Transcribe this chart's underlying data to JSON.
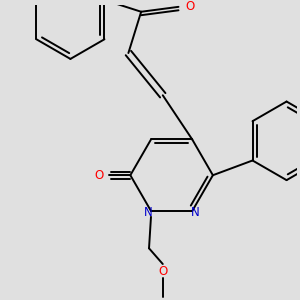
{
  "background_color": "#e0e0e0",
  "bond_color": "#000000",
  "O_color": "#ff0000",
  "N_color": "#0000cc",
  "bond_lw": 1.4,
  "font_size": 8.5,
  "ring_r": 0.075,
  "ph_r": 0.075
}
